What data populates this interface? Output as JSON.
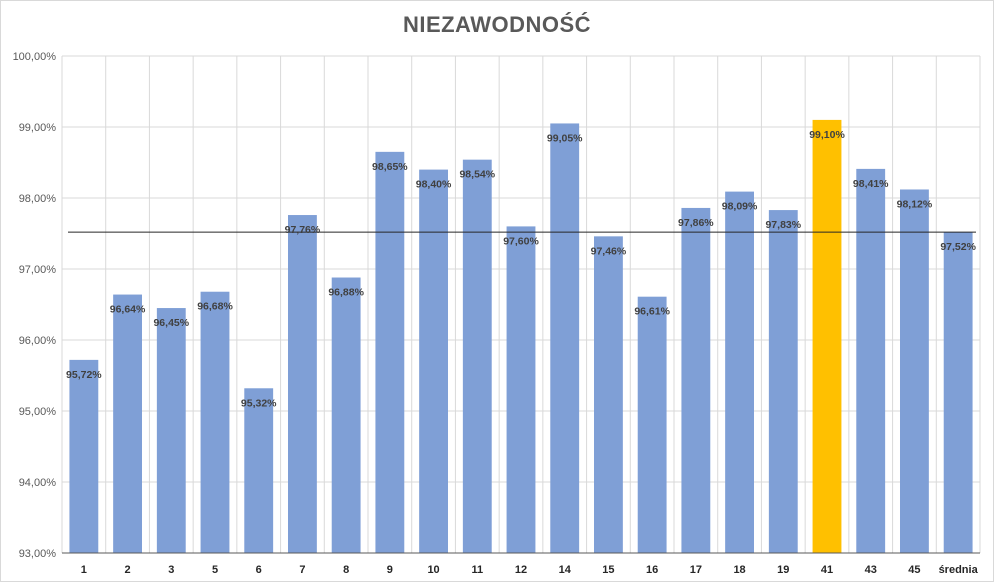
{
  "chart_data": {
    "type": "bar",
    "title": "NIEZAWODNOŚĆ",
    "xlabel": "",
    "ylabel": "",
    "ylim": [
      93,
      100
    ],
    "y_ticks": [
      93,
      94,
      95,
      96,
      97,
      98,
      99,
      100
    ],
    "y_tick_labels": [
      "93,00%",
      "94,00%",
      "95,00%",
      "96,00%",
      "97,00%",
      "98,00%",
      "99,00%",
      "100,00%"
    ],
    "categories": [
      "1",
      "2",
      "3",
      "5",
      "6",
      "7",
      "8",
      "9",
      "10",
      "11",
      "12",
      "14",
      "15",
      "16",
      "17",
      "18",
      "19",
      "41",
      "43",
      "45",
      "średnia"
    ],
    "values": [
      95.72,
      96.64,
      96.45,
      96.68,
      95.32,
      97.76,
      96.88,
      98.65,
      98.4,
      98.54,
      97.6,
      99.05,
      97.46,
      96.61,
      97.86,
      98.09,
      97.83,
      99.1,
      98.41,
      98.12,
      97.52
    ],
    "data_labels": [
      "95,72%",
      "96,64%",
      "96,45%",
      "96,68%",
      "95,32%",
      "97,76%",
      "96,88%",
      "98,65%",
      "98,40%",
      "98,54%",
      "97,60%",
      "99,05%",
      "97,46%",
      "96,61%",
      "97,86%",
      "98,09%",
      "97,83%",
      "99,10%",
      "98,41%",
      "98,12%",
      "97,52%"
    ],
    "highlight_category": "41",
    "reference_line": 97.52,
    "grid": true,
    "legend": "none",
    "colors": {
      "bar": "#7f9fd6",
      "highlight": "#ffc000",
      "grid": "#d9d9d9",
      "axis": "#595959",
      "reference_line": "#262626"
    }
  }
}
